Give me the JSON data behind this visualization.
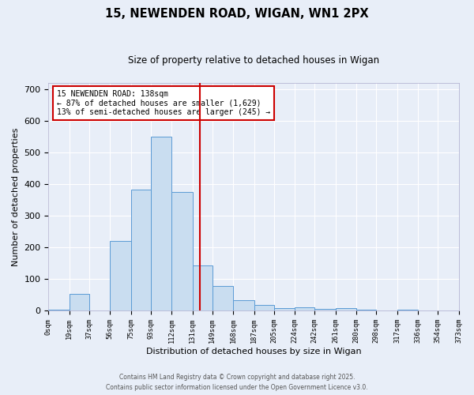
{
  "title": "15, NEWENDEN ROAD, WIGAN, WN1 2PX",
  "subtitle": "Size of property relative to detached houses in Wigan",
  "xlabel": "Distribution of detached houses by size in Wigan",
  "ylabel": "Number of detached properties",
  "bar_color": "#c9ddf0",
  "bar_edge_color": "#5b9bd5",
  "background_color": "#e8eef8",
  "grid_color": "#ffffff",
  "vline_value": 138,
  "vline_color": "#cc0000",
  "annotation_title": "15 NEWENDEN ROAD: 138sqm",
  "annotation_line1": "← 87% of detached houses are smaller (1,629)",
  "annotation_line2": "13% of semi-detached houses are larger (245) →",
  "annotation_box_color": "#ffffff",
  "annotation_box_edge": "#cc0000",
  "bin_edges": [
    0,
    19,
    37,
    56,
    75,
    93,
    112,
    131,
    149,
    168,
    187,
    205,
    224,
    242,
    261,
    280,
    298,
    317,
    336,
    354,
    373
  ],
  "bin_counts": [
    2,
    52,
    0,
    220,
    382,
    549,
    375,
    143,
    79,
    32,
    18,
    8,
    10,
    5,
    8,
    2,
    0,
    3,
    0,
    1
  ],
  "tick_labels": [
    "0sqm",
    "19sqm",
    "37sqm",
    "56sqm",
    "75sqm",
    "93sqm",
    "112sqm",
    "131sqm",
    "149sqm",
    "168sqm",
    "187sqm",
    "205sqm",
    "224sqm",
    "242sqm",
    "261sqm",
    "280sqm",
    "298sqm",
    "317sqm",
    "336sqm",
    "354sqm",
    "373sqm"
  ],
  "footer1": "Contains HM Land Registry data © Crown copyright and database right 2025.",
  "footer2": "Contains public sector information licensed under the Open Government Licence v3.0.",
  "ylim": [
    0,
    720
  ],
  "figsize": [
    6.0,
    5.0
  ],
  "dpi": 100
}
